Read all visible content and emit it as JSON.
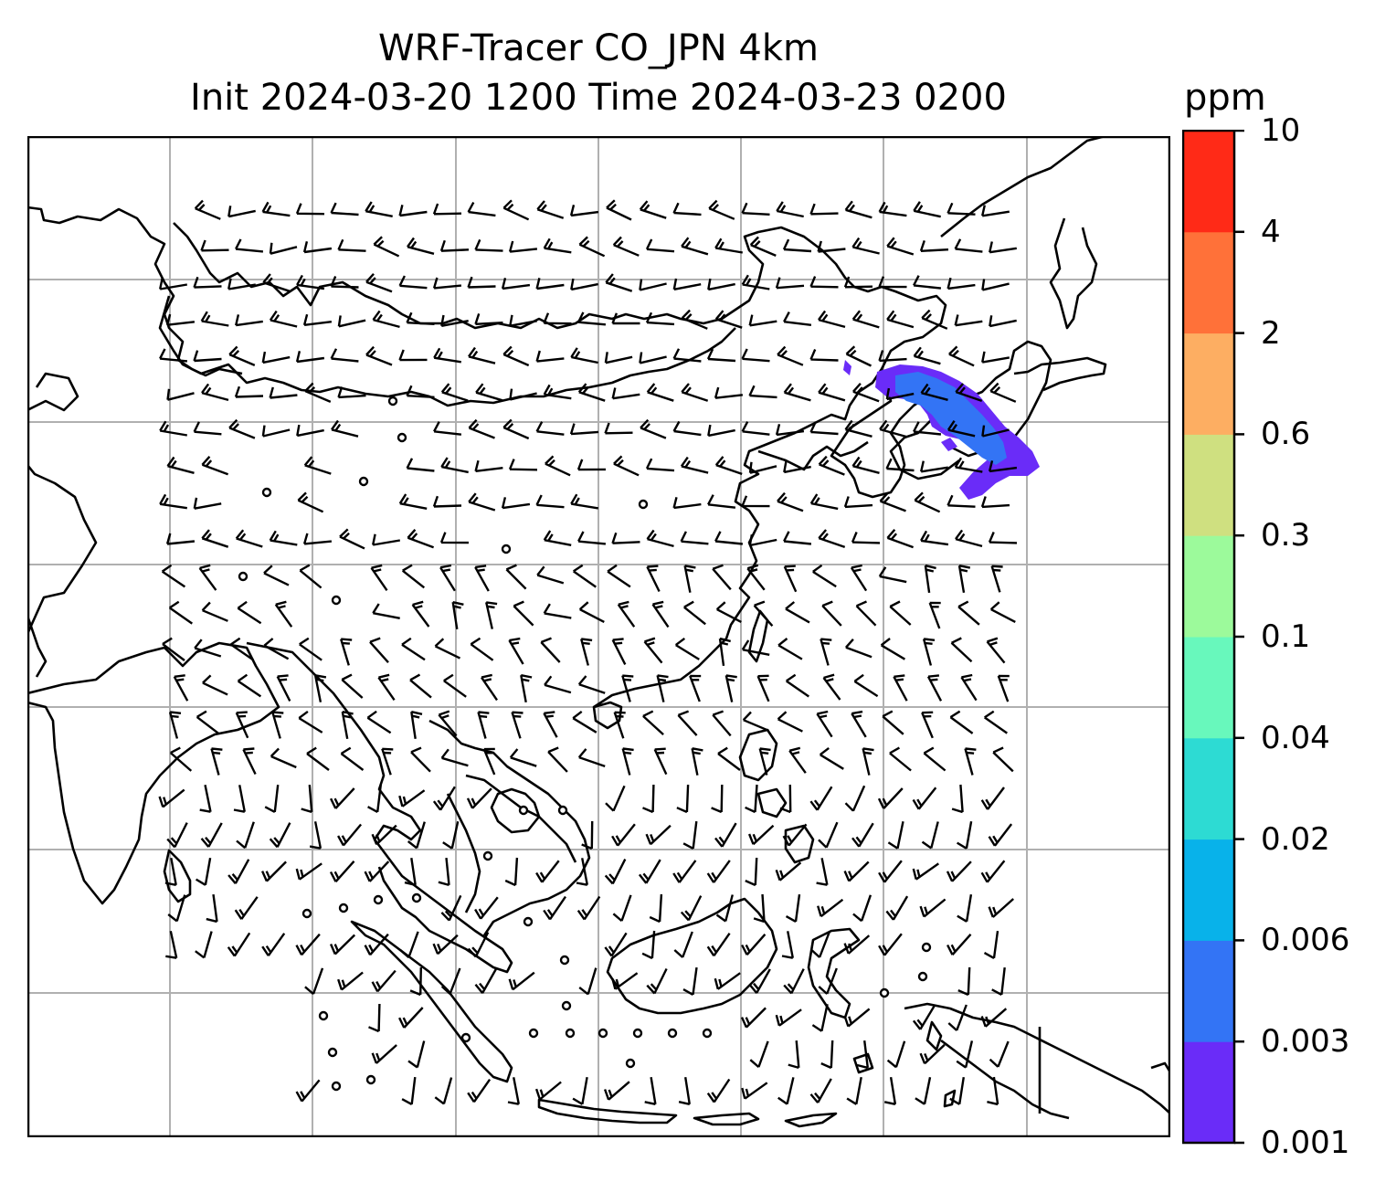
{
  "title": {
    "line1": "WRF-Tracer CO_JPN 4km",
    "line2": "Init 2024-03-20 1200 Time 2024-03-23 0200"
  },
  "colorbar": {
    "unit": "ppm",
    "ticks": [
      "10",
      "4",
      "2",
      "0.6",
      "0.3",
      "0.1",
      "0.04",
      "0.02",
      "0.006",
      "0.003",
      "0.001"
    ],
    "colors": [
      "#6a2cf8",
      "#3374f5",
      "#08b2ea",
      "#2ddbd3",
      "#68f8bc",
      "#9cfa9b",
      "#cfe080",
      "#fdae62",
      "#ff7139",
      "#ff2a17"
    ]
  },
  "map": {
    "gridline_color": "#b0b0b0",
    "coastline_color": "#000000",
    "plume_colors": {
      "low": "#6a2cf8",
      "mid": "#3374f5"
    }
  }
}
